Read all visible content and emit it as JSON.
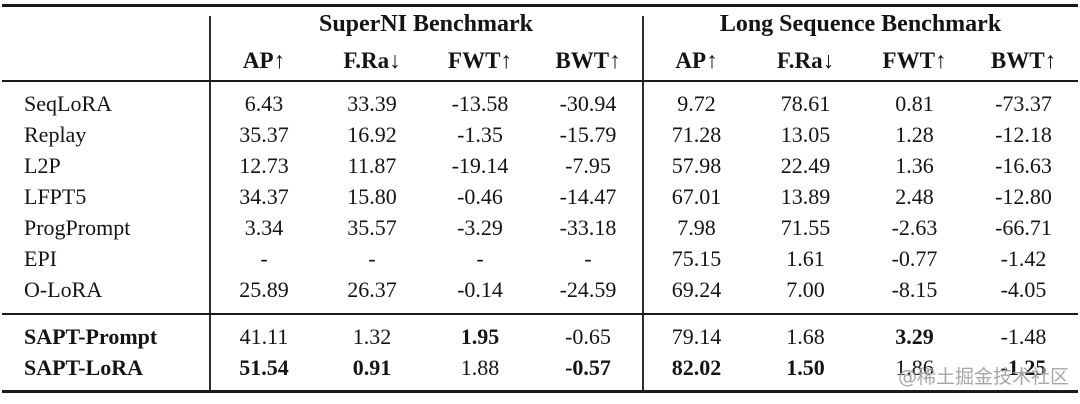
{
  "table": {
    "col_groups": [
      {
        "title": "SuperNI Benchmark",
        "metrics": [
          "AP↑",
          "F.Ra↓",
          "FWT↑",
          "BWT↑"
        ]
      },
      {
        "title": "Long Sequence Benchmark",
        "metrics": [
          "AP↑",
          "F.Ra↓",
          "FWT↑",
          "BWT↑"
        ]
      }
    ],
    "rows": [
      {
        "label": "SeqLoRA",
        "superni": [
          "6.43",
          "33.39",
          "-13.58",
          "-30.94"
        ],
        "longseq": [
          "9.72",
          "78.61",
          "0.81",
          "-73.37"
        ]
      },
      {
        "label": "Replay",
        "superni": [
          "35.37",
          "16.92",
          "-1.35",
          "-15.79"
        ],
        "longseq": [
          "71.28",
          "13.05",
          "1.28",
          "-12.18"
        ]
      },
      {
        "label": "L2P",
        "superni": [
          "12.73",
          "11.87",
          "-19.14",
          "-7.95"
        ],
        "longseq": [
          "57.98",
          "22.49",
          "1.36",
          "-16.63"
        ]
      },
      {
        "label": "LFPT5",
        "superni": [
          "34.37",
          "15.80",
          "-0.46",
          "-14.47"
        ],
        "longseq": [
          "67.01",
          "13.89",
          "2.48",
          "-12.80"
        ]
      },
      {
        "label": "ProgPrompt",
        "superni": [
          "3.34",
          "35.57",
          "-3.29",
          "-33.18"
        ],
        "longseq": [
          "7.98",
          "71.55",
          "-2.63",
          "-66.71"
        ]
      },
      {
        "label": "EPI",
        "superni": [
          "-",
          "-",
          "-",
          "-"
        ],
        "longseq": [
          "75.15",
          "1.61",
          "-0.77",
          "-1.42"
        ]
      },
      {
        "label": "O-LoRA",
        "superni": [
          "25.89",
          "26.37",
          "-0.14",
          "-24.59"
        ],
        "longseq": [
          "69.24",
          "7.00",
          "-8.15",
          "-4.05"
        ]
      }
    ],
    "sapt_rows": [
      {
        "label": "SAPT-Prompt",
        "superni": [
          "41.11",
          "1.32",
          "1.95",
          "-0.65"
        ],
        "longseq": [
          "79.14",
          "1.68",
          "3.29",
          "-1.48"
        ]
      },
      {
        "label": "SAPT-LoRA",
        "superni": [
          "51.54",
          "0.91",
          "1.88",
          "-0.57"
        ],
        "longseq": [
          "82.02",
          "1.50",
          "1.86",
          "-1.25"
        ]
      }
    ]
  },
  "watermark": {
    "text": "@稀土掘金技术社区"
  }
}
